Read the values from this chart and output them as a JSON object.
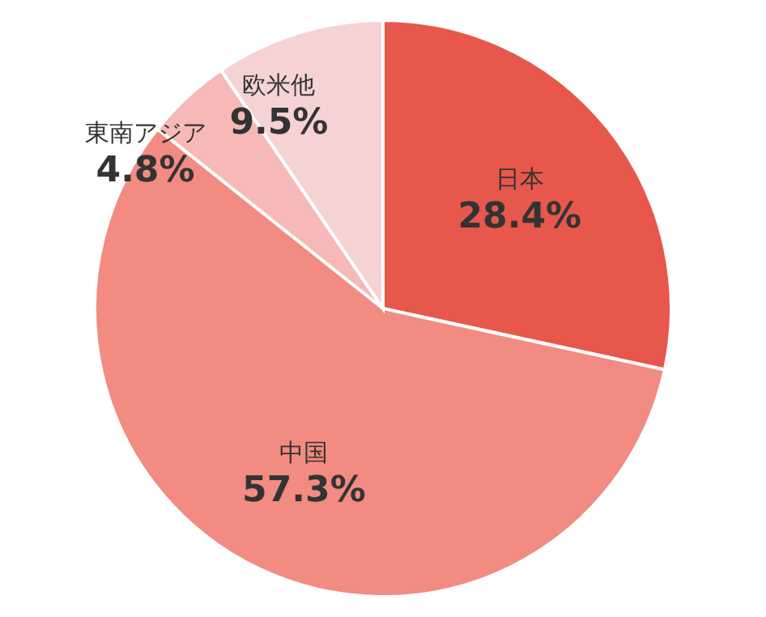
{
  "chart_data": {
    "type": "pie",
    "categories": [
      "日本",
      "中国",
      "東南アジア",
      "欧米他"
    ],
    "values": [
      28.4,
      57.3,
      4.8,
      9.5
    ],
    "value_labels": [
      "28.4%",
      "57.3%",
      "4.8%",
      "9.5%"
    ],
    "colors": [
      "#e8574b",
      "#f28b82",
      "#f6b9b7",
      "#f5d3d3"
    ]
  }
}
